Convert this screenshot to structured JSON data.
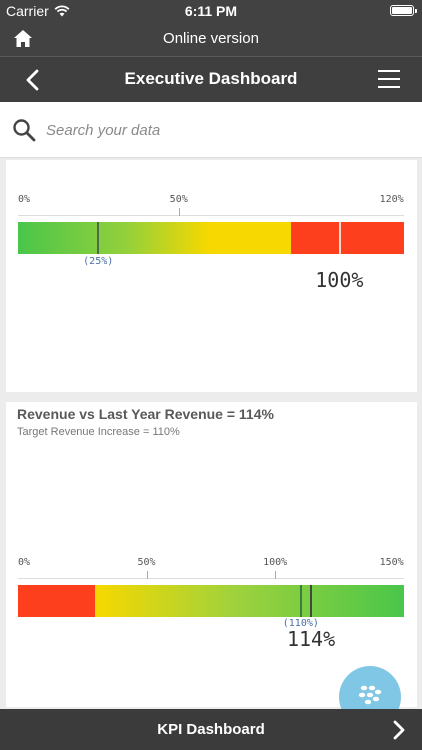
{
  "status_bar": {
    "carrier": "Carrier",
    "time": "6:11 PM"
  },
  "online_bar": {
    "label": "Online version"
  },
  "nav": {
    "title": "Executive Dashboard"
  },
  "search": {
    "placeholder": "Search your data"
  },
  "kpi1": {
    "ticks": [
      "0%",
      "50%",
      "120%"
    ],
    "tick_values": [
      0,
      50,
      120
    ],
    "range": [
      0,
      120
    ],
    "target_label": "(25%)",
    "target": 25,
    "value_label": "100%",
    "value": 100
  },
  "kpi2": {
    "title": "Revenue vs Last Year Revenue = 114%",
    "subtitle": "Target Revenue Increase = 110%",
    "ticks": [
      "0%",
      "50%",
      "100%",
      "150%"
    ],
    "tick_values": [
      0,
      50,
      100,
      150
    ],
    "range": [
      0,
      150
    ],
    "target_label": "(110%)",
    "target": 110,
    "value_label": "114%",
    "value": 114
  },
  "bottom": {
    "label": "KPI Dashboard"
  },
  "colors": {
    "red": "#fe3f1d",
    "yellow": "#f7d800",
    "green": "#4ac64a",
    "bar_dark": "#424242"
  }
}
